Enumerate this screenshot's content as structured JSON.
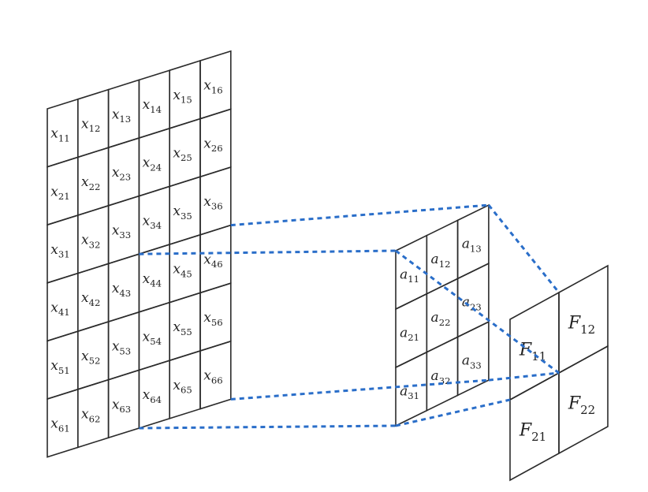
{
  "colors": {
    "input_cell": "#ffffff",
    "receptive_field": "#f8d9c0",
    "kernel": "#dcd3e8",
    "connector": "#2a6ec9",
    "output": {
      "F11": "#5ee8ea",
      "F12": "#d08a80",
      "F21": "#dbe2c4",
      "F22": "#fbe39a"
    }
  },
  "input_matrix": {
    "rows": 6,
    "cols": 6,
    "highlight": {
      "row_start": 4,
      "row_end": 6,
      "col_start": 4,
      "col_end": 6
    },
    "labels": [
      [
        {
          "base": "x",
          "sub": "11"
        },
        {
          "base": "x",
          "sub": "12"
        },
        {
          "base": "x",
          "sub": "13"
        },
        {
          "base": "x",
          "sub": "14"
        },
        {
          "base": "x",
          "sub": "15"
        },
        {
          "base": "x",
          "sub": "16"
        }
      ],
      [
        {
          "base": "x",
          "sub": "21"
        },
        {
          "base": "x",
          "sub": "22"
        },
        {
          "base": "x",
          "sub": "23"
        },
        {
          "base": "x",
          "sub": "24"
        },
        {
          "base": "x",
          "sub": "25"
        },
        {
          "base": "x",
          "sub": "26"
        }
      ],
      [
        {
          "base": "x",
          "sub": "31"
        },
        {
          "base": "x",
          "sub": "32"
        },
        {
          "base": "x",
          "sub": "33"
        },
        {
          "base": "x",
          "sub": "34"
        },
        {
          "base": "x",
          "sub": "35"
        },
        {
          "base": "x",
          "sub": "36"
        }
      ],
      [
        {
          "base": "x",
          "sub": "41"
        },
        {
          "base": "x",
          "sub": "42"
        },
        {
          "base": "x",
          "sub": "43"
        },
        {
          "base": "x",
          "sub": "44"
        },
        {
          "base": "x",
          "sub": "45"
        },
        {
          "base": "x",
          "sub": "46"
        }
      ],
      [
        {
          "base": "x",
          "sub": "51"
        },
        {
          "base": "x",
          "sub": "52"
        },
        {
          "base": "x",
          "sub": "53"
        },
        {
          "base": "x",
          "sub": "54"
        },
        {
          "base": "x",
          "sub": "55"
        },
        {
          "base": "x",
          "sub": "56"
        }
      ],
      [
        {
          "base": "x",
          "sub": "61"
        },
        {
          "base": "x",
          "sub": "62"
        },
        {
          "base": "x",
          "sub": "63"
        },
        {
          "base": "x",
          "sub": "64"
        },
        {
          "base": "x",
          "sub": "65"
        },
        {
          "base": "x",
          "sub": "66"
        }
      ]
    ]
  },
  "kernel": {
    "rows": 3,
    "cols": 3,
    "labels": [
      [
        {
          "base": "a",
          "sub": "11"
        },
        {
          "base": "a",
          "sub": "12"
        },
        {
          "base": "a",
          "sub": "13"
        }
      ],
      [
        {
          "base": "a",
          "sub": "21"
        },
        {
          "base": "a",
          "sub": "22"
        },
        {
          "base": "a",
          "sub": "23"
        }
      ],
      [
        {
          "base": "a",
          "sub": "31"
        },
        {
          "base": "a",
          "sub": "32"
        },
        {
          "base": "a",
          "sub": "33"
        }
      ]
    ]
  },
  "output": {
    "rows": 2,
    "cols": 2,
    "labels": [
      [
        {
          "base": "F",
          "sub": "11"
        },
        {
          "base": "F",
          "sub": "12"
        }
      ],
      [
        {
          "base": "F",
          "sub": "21"
        },
        {
          "base": "F",
          "sub": "22"
        }
      ]
    ]
  }
}
